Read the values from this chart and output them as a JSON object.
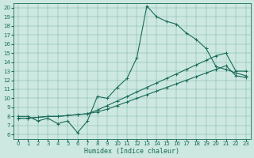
{
  "xlabel": "Humidex (Indice chaleur)",
  "background_color": "#cce8e0",
  "line_color": "#1a6b5a",
  "xlim": [
    -0.5,
    23.5
  ],
  "ylim": [
    5.5,
    20.5
  ],
  "yticks": [
    6,
    7,
    8,
    9,
    10,
    11,
    12,
    13,
    14,
    15,
    16,
    17,
    18,
    19,
    20
  ],
  "xticks": [
    0,
    1,
    2,
    3,
    4,
    5,
    6,
    7,
    8,
    9,
    10,
    11,
    12,
    13,
    14,
    15,
    16,
    17,
    18,
    19,
    20,
    21,
    22,
    23
  ],
  "curve1_x": [
    0,
    1,
    2,
    3,
    4,
    5,
    6,
    7,
    8,
    9,
    10,
    11,
    12,
    13,
    14,
    15,
    16,
    17,
    18,
    19,
    20,
    21,
    22,
    23
  ],
  "curve1_y": [
    8.0,
    8.0,
    7.5,
    7.8,
    7.2,
    7.5,
    6.2,
    7.5,
    10.2,
    10.0,
    11.2,
    12.2,
    14.5,
    20.2,
    19.0,
    18.5,
    18.2,
    17.2,
    16.5,
    15.5,
    13.5,
    13.2,
    12.8,
    12.5
  ],
  "curve2_x": [
    0,
    1,
    2,
    3,
    4,
    5,
    6,
    7,
    8,
    9,
    10,
    11,
    12,
    13,
    14,
    15,
    16,
    17,
    18,
    19,
    20,
    21,
    22,
    23
  ],
  "curve2_y": [
    7.8,
    7.8,
    7.9,
    8.0,
    8.0,
    8.1,
    8.2,
    8.3,
    8.7,
    9.2,
    9.7,
    10.2,
    10.7,
    11.2,
    11.7,
    12.2,
    12.7,
    13.2,
    13.7,
    14.2,
    14.7,
    15.0,
    13.0,
    13.0
  ],
  "curve3_x": [
    0,
    1,
    2,
    3,
    4,
    5,
    6,
    7,
    8,
    9,
    10,
    11,
    12,
    13,
    14,
    15,
    16,
    17,
    18,
    19,
    20,
    21,
    22,
    23
  ],
  "curve3_y": [
    7.8,
    7.8,
    7.9,
    8.0,
    8.0,
    8.1,
    8.2,
    8.3,
    8.5,
    8.8,
    9.2,
    9.6,
    10.0,
    10.4,
    10.8,
    11.2,
    11.6,
    12.0,
    12.4,
    12.8,
    13.2,
    13.6,
    12.5,
    12.3
  ]
}
